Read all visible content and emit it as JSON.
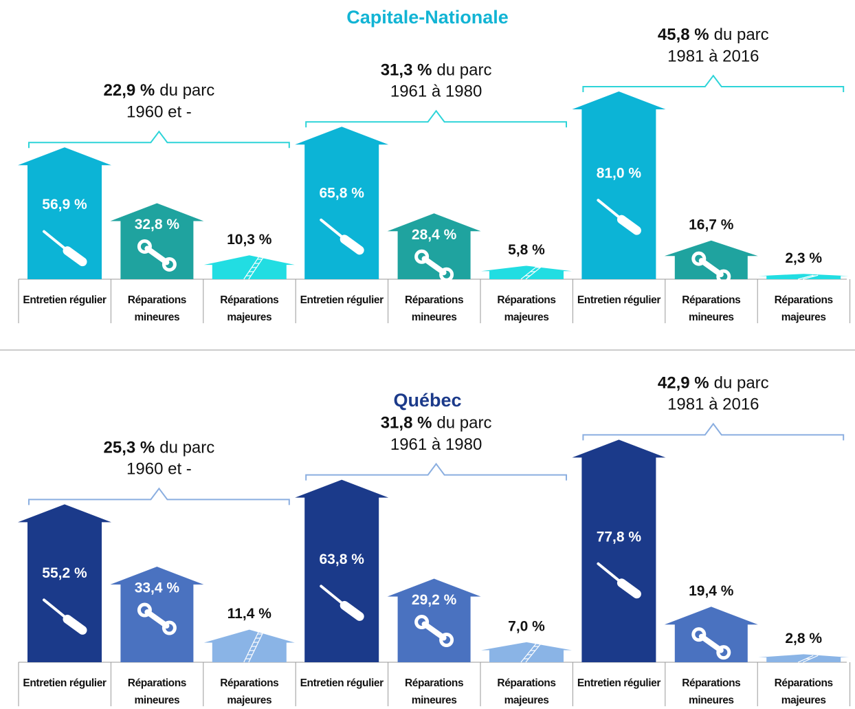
{
  "chart_data": [
    {
      "type": "bar",
      "title": "Capitale-Nationale",
      "title_color": "#12b4d4",
      "bracket_color": "#2dd4d8",
      "groups": [
        {
          "share": 22.9,
          "share_label": "22,9 %",
          "share_text": "du parc",
          "period": "1960 et -"
        },
        {
          "share": 31.3,
          "share_label": "31,3 %",
          "share_text": "du parc",
          "period": "1961 à 1980"
        },
        {
          "share": 45.8,
          "share_label": "45,8 %",
          "share_text": "du parc",
          "period": "1981 à 2016"
        }
      ],
      "categories": [
        "Entretien régulier",
        "Réparations mineures",
        "Réparations majeures",
        "Entretien régulier",
        "Réparations mineures",
        "Réparations majeures",
        "Entretien régulier",
        "Réparations mineures",
        "Réparations majeures"
      ],
      "values": [
        56.9,
        32.8,
        10.3,
        65.8,
        28.4,
        5.8,
        81.0,
        16.7,
        2.3
      ],
      "value_labels": [
        "56,9 %",
        "32,8 %",
        "10,3 %",
        "65,8 %",
        "28,4 %",
        "5,8 %",
        "81,0 %",
        "16,7 %",
        "2,3 %"
      ],
      "colors": [
        "#0cb4d6",
        "#1fa39f",
        "#22dde2",
        "#0cb4d6",
        "#1fa39f",
        "#22dde2",
        "#0cb4d6",
        "#1fa39f",
        "#22dde2"
      ]
    },
    {
      "type": "bar",
      "title": "Québec",
      "title_color": "#1b3a8a",
      "bracket_color": "#8aaee0",
      "groups": [
        {
          "share": 25.3,
          "share_label": "25,3 %",
          "share_text": "du parc",
          "period": "1960 et -"
        },
        {
          "share": 31.8,
          "share_label": "31,8 %",
          "share_text": "du parc",
          "period": "1961 à 1980"
        },
        {
          "share": 42.9,
          "share_label": "42,9 %",
          "share_text": "du parc",
          "period": "1981 à 2016"
        }
      ],
      "categories": [
        "Entretien régulier",
        "Réparations mineures",
        "Réparations majeures",
        "Entretien régulier",
        "Réparations mineures",
        "Réparations majeures",
        "Entretien régulier",
        "Réparations mineures",
        "Réparations majeures"
      ],
      "values": [
        55.2,
        33.4,
        11.4,
        63.8,
        29.2,
        7.0,
        77.8,
        19.4,
        2.8
      ],
      "value_labels": [
        "55,2 %",
        "33,4 %",
        "11,4 %",
        "63,8 %",
        "29,2 %",
        "7,0 %",
        "77,8 %",
        "19,4 %",
        "2,8 %"
      ],
      "colors": [
        "#1b3a8a",
        "#4a72c0",
        "#8ab4e6",
        "#1b3a8a",
        "#4a72c0",
        "#8ab4e6",
        "#1b3a8a",
        "#4a72c0",
        "#8ab4e6"
      ]
    }
  ]
}
